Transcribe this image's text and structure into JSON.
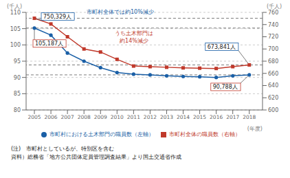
{
  "chart_data": {
    "type": "line",
    "x_label": "(年度)",
    "y_label": "(千人)",
    "y2_label": "(千人)",
    "x": [
      2005,
      2006,
      2007,
      2008,
      2009,
      2010,
      2011,
      2012,
      2013,
      2014,
      2015,
      2016,
      2017,
      2018
    ],
    "xlim": [
      2004.5,
      2018.8
    ],
    "xticks": [
      2005,
      2006,
      2007,
      2008,
      2009,
      2010,
      2011,
      2012,
      2013,
      2014,
      2015,
      2016,
      2017,
      2018
    ],
    "ylim": [
      80,
      110
    ],
    "yticks": [
      80,
      85,
      90,
      95,
      100,
      105,
      110
    ],
    "y2lim": [
      600,
      760
    ],
    "y2ticks": [
      600,
      620,
      640,
      660,
      680,
      700,
      720,
      740,
      760
    ],
    "grid": true,
    "legend": "bottom",
    "series": [
      {
        "name": "市町村における土木部門の職員数（左軸）",
        "color": "#1a5fa6",
        "marker": "circle",
        "values": [
          105.187,
          103.0,
          97.5,
          95.0,
          93.0,
          91.5,
          91.0,
          90.8,
          90.5,
          90.3,
          90.2,
          90.0,
          90.5,
          90.788
        ]
      },
      {
        "name": "市町村全体の職員数（右軸）",
        "color": "#c0392b",
        "marker": "square",
        "axis": "y2",
        "values": [
          750.329,
          741.0,
          720.0,
          700.0,
          695.0,
          683.0,
          672.0,
          671.0,
          670.0,
          669.0,
          668.5,
          668.0,
          671.0,
          673.841
        ]
      }
    ],
    "annotations": [
      {
        "text": "750,329人",
        "x": 2005,
        "y": 750.329,
        "axis": "y2"
      },
      {
        "text": "105,187人",
        "x": 2005,
        "y": 105.187
      },
      {
        "text": "673,841人",
        "x": 2018,
        "y": 673.841,
        "axis": "y2"
      },
      {
        "text": "90,788人",
        "x": 2018,
        "y": 90.788
      },
      {
        "text": "市町村全体では約10%減少"
      },
      {
        "text": "うち土木部門は"
      },
      {
        "text": "約14%減少"
      }
    ],
    "notes": [
      "(注)　市町村としているが、特別区を含む",
      "資料）総務省「地方公共団体定員管理調査結果」より国土交通省作成"
    ]
  }
}
